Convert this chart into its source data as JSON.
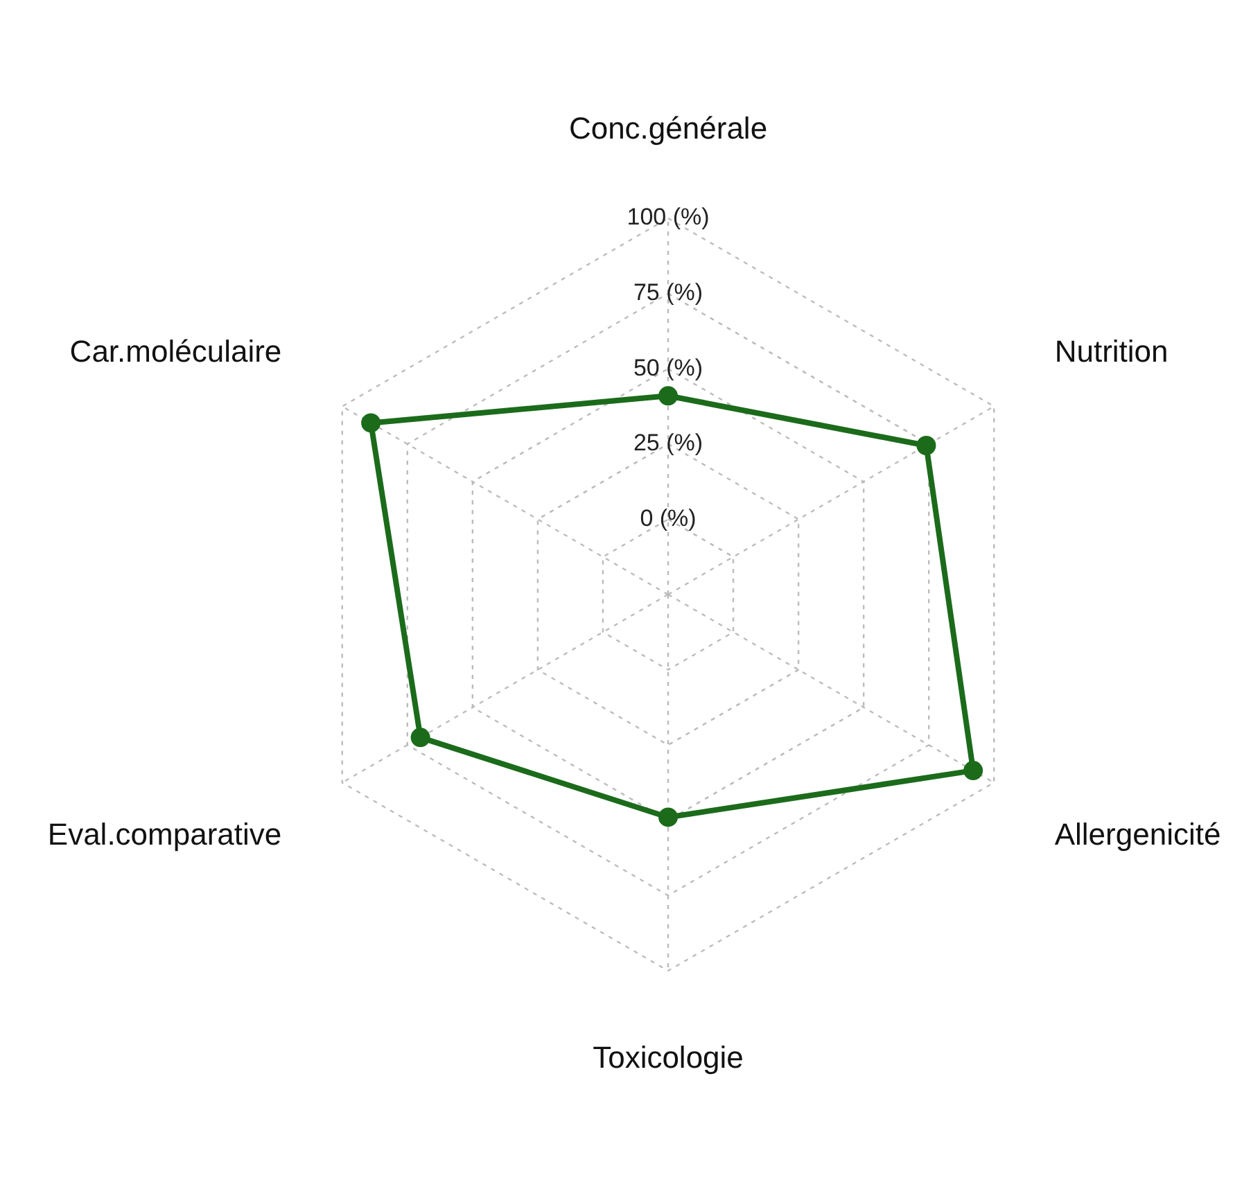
{
  "chart_data": {
    "type": "radar",
    "categories": [
      "Conc.générale",
      "Nutrition",
      "Allergenicité",
      "Toxicologie",
      "Eval.comparative",
      "Car.moléculaire"
    ],
    "series": [
      {
        "color": "#1b6b1b",
        "values": [
          41,
          74,
          92,
          49,
          70,
          89
        ]
      }
    ],
    "ylim": [
      -25,
      100
    ],
    "yticks": [
      {
        "value": 0,
        "label": "0 (%)"
      },
      {
        "value": 25,
        "label": "25 (%)"
      },
      {
        "value": 50,
        "label": "50 (%)"
      },
      {
        "value": 75,
        "label": "75 (%)"
      },
      {
        "value": 100,
        "label": "100 (%)"
      }
    ],
    "grid": true,
    "legend": false,
    "marker": "circle",
    "line_style": "solid"
  }
}
